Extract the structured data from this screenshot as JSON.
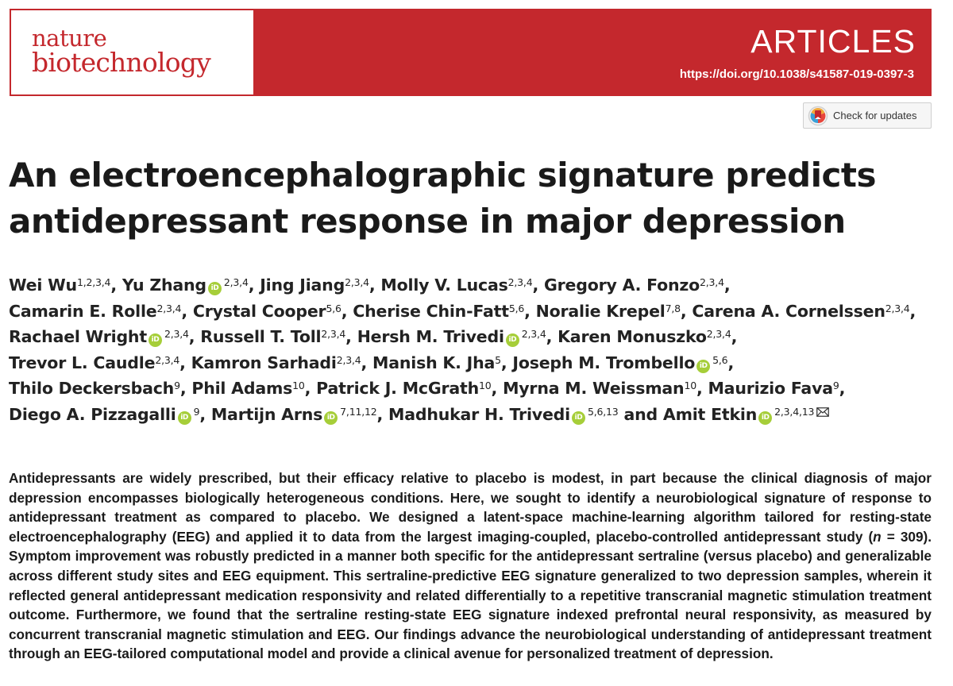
{
  "header": {
    "journal_line1": "nature",
    "journal_line2": "biotechnology",
    "section": "ARTICLES",
    "doi": "https://doi.org/10.1038/s41587-019-0397-3",
    "brand_color": "#c4282d"
  },
  "check_updates": {
    "label": "Check for updates",
    "icon": "check-for-updates-icon"
  },
  "title_line1": "An electroencephalographic signature predicts",
  "title_line2": "antidepressant response in major depression",
  "authors": [
    {
      "name": "Wei Wu",
      "aff": "1,2,3,4",
      "orcid": false
    },
    {
      "name": "Yu Zhang",
      "aff": "2,3,4",
      "orcid": true
    },
    {
      "name": "Jing Jiang",
      "aff": "2,3,4",
      "orcid": false
    },
    {
      "name": "Molly V. Lucas",
      "aff": "2,3,4",
      "orcid": false
    },
    {
      "name": "Gregory A. Fonzo",
      "aff": "2,3,4",
      "orcid": false
    },
    {
      "name": "Camarin E. Rolle",
      "aff": "2,3,4",
      "orcid": false
    },
    {
      "name": "Crystal Cooper",
      "aff": "5,6",
      "orcid": false
    },
    {
      "name": "Cherise Chin-Fatt",
      "aff": "5,6",
      "orcid": false
    },
    {
      "name": "Noralie Krepel",
      "aff": "7,8",
      "orcid": false
    },
    {
      "name": "Carena A. Cornelssen",
      "aff": "2,3,4",
      "orcid": false
    },
    {
      "name": "Rachael Wright",
      "aff": "2,3,4",
      "orcid": true
    },
    {
      "name": "Russell T. Toll",
      "aff": "2,3,4",
      "orcid": false
    },
    {
      "name": "Hersh M. Trivedi",
      "aff": "2,3,4",
      "orcid": true
    },
    {
      "name": "Karen Monuszko",
      "aff": "2,3,4",
      "orcid": false
    },
    {
      "name": "Trevor L. Caudle",
      "aff": "2,3,4",
      "orcid": false
    },
    {
      "name": "Kamron Sarhadi",
      "aff": "2,3,4",
      "orcid": false
    },
    {
      "name": "Manish K. Jha",
      "aff": "5",
      "orcid": false
    },
    {
      "name": "Joseph M. Trombello",
      "aff": "5,6",
      "orcid": true
    },
    {
      "name": "Thilo Deckersbach",
      "aff": "9",
      "orcid": false
    },
    {
      "name": "Phil Adams",
      "aff": "10",
      "orcid": false
    },
    {
      "name": "Patrick J. McGrath",
      "aff": "10",
      "orcid": false
    },
    {
      "name": "Myrna M. Weissman",
      "aff": "10",
      "orcid": false
    },
    {
      "name": "Maurizio Fava",
      "aff": "9",
      "orcid": false
    },
    {
      "name": "Diego A. Pizzagalli",
      "aff": "9",
      "orcid": true
    },
    {
      "name": "Martijn Arns",
      "aff": "7,11,12",
      "orcid": true
    },
    {
      "name": "Madhukar H. Trivedi",
      "aff": "5,6,13",
      "orcid": true
    },
    {
      "name": "Amit Etkin",
      "aff": "2,3,4,13",
      "orcid": true,
      "corresponding": true
    }
  ],
  "author_line_breaks_after": [
    4,
    9,
    13,
    17,
    22
  ],
  "author_final_conjunction": "and",
  "orcid_icon_text": "iD",
  "abstract": {
    "p1": "Antidepressants are widely prescribed, but their efficacy relative to placebo is modest, in part because the clinical diagnosis of major depression encompasses biologically heterogeneous conditions. Here, we sought to identify a neurobiological signature of response to antidepressant treatment as compared to placebo. We designed a latent-space machine-learning algorithm tailored for resting-state electroencephalography (EEG) and applied it to data from the largest imaging-coupled, placebo-controlled antidepressant study (",
    "n_symbol": "n",
    "n_value": " = 309",
    "p2": "). Symptom improvement was robustly predicted in a manner both specific for the antidepressant sertraline (versus placebo) and generalizable across different study sites and EEG equipment. This sertraline-predictive EEG signature generalized to two depression samples, wherein it reflected general antidepressant medication responsivity and related differentially to a repetitive transcranial magnetic stimulation treatment outcome. Furthermore, we found that the sertraline resting-state EEG signature indexed prefrontal neural responsivity, as measured by concurrent transcranial magnetic stimulation and EEG. Our findings advance the neurobiological understanding of antidepressant treatment through an EEG-tailored computational model and provide a clinical avenue for personalized treatment of depression."
  }
}
